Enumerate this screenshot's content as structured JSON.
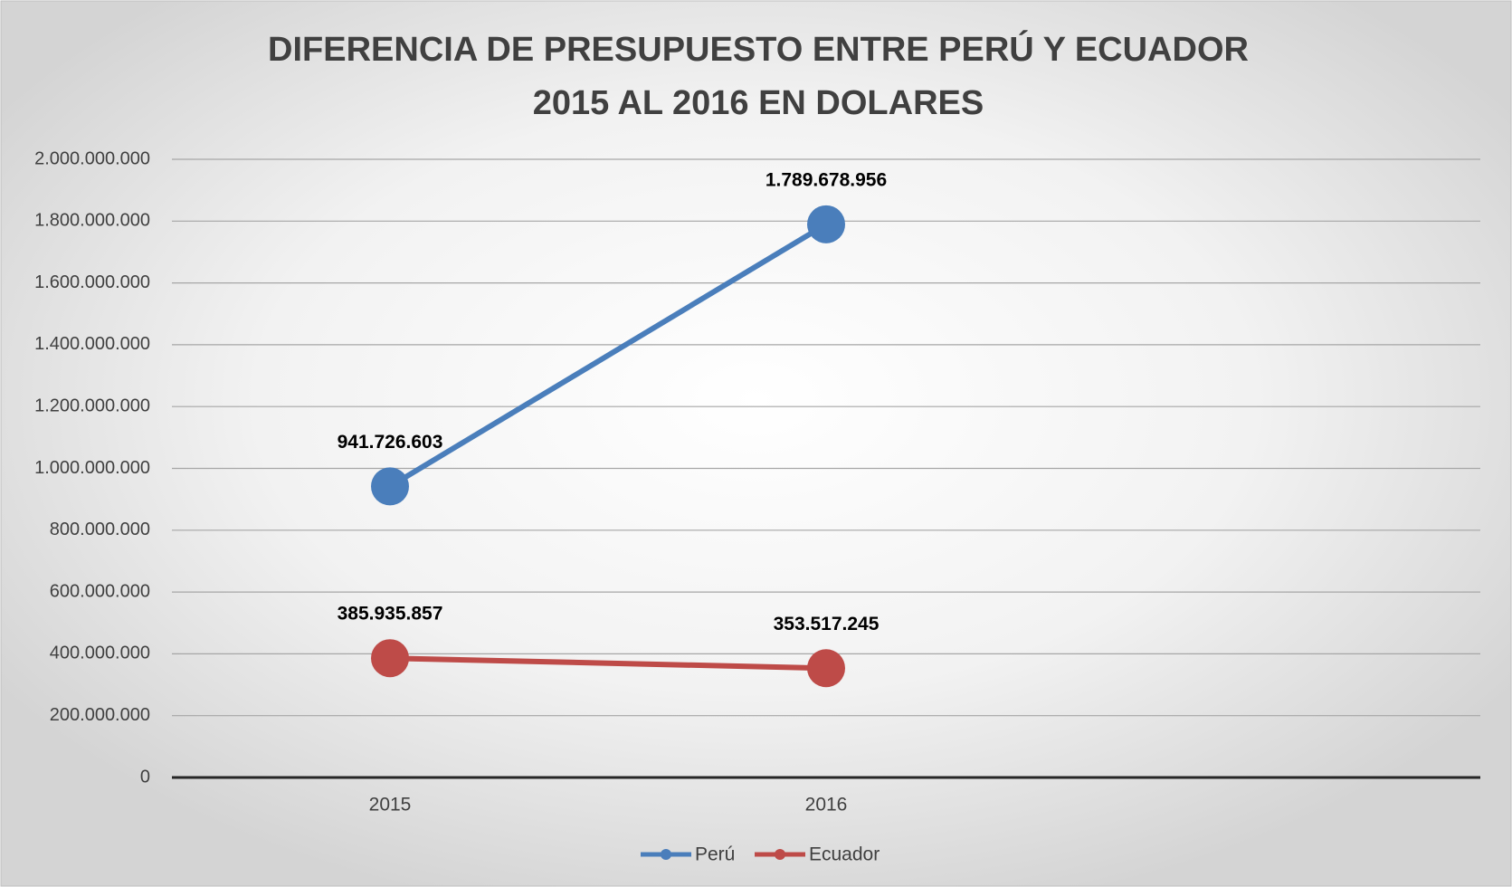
{
  "chart_data": {
    "type": "line",
    "title": [
      "DIFERENCIA DE PRESUPUESTO ENTRE PERÚ Y ECUADOR",
      "2015 AL 2016 EN DOLARES"
    ],
    "categories": [
      "2015",
      "2016",
      null
    ],
    "series": [
      {
        "name": "Perú",
        "color": "#4a7ebb",
        "values": [
          941726603,
          1789678956,
          null
        ],
        "value_labels": [
          "941.726.603",
          "1.789.678.956",
          null
        ]
      },
      {
        "name": "Ecuador",
        "color": "#be4b48",
        "values": [
          385935857,
          353517245,
          null
        ],
        "value_labels": [
          "385.935.857",
          "353.517.245",
          null
        ]
      }
    ],
    "ylim": [
      0,
      2000000000
    ],
    "yticks": [
      0,
      {
        "value": 200000000,
        "label": "200.000.000"
      },
      {
        "value": 400000000,
        "label": "400.000.000"
      },
      {
        "value": 600000000,
        "label": "600.000.000"
      },
      {
        "value": 800000000,
        "label": "800.000.000"
      },
      {
        "value": 1000000000,
        "label": "1.000.000.000"
      },
      {
        "value": 1200000000,
        "label": "1.200.000.000"
      },
      {
        "value": 1400000000,
        "label": "1.400.000.000"
      },
      {
        "value": 1600000000,
        "label": "1.600.000.000"
      },
      {
        "value": 1800000000,
        "label": "1.800.000.000"
      },
      {
        "value": 2000000000,
        "label": "2.000.000.000"
      }
    ],
    "grid": true,
    "legend": "bottom"
  }
}
